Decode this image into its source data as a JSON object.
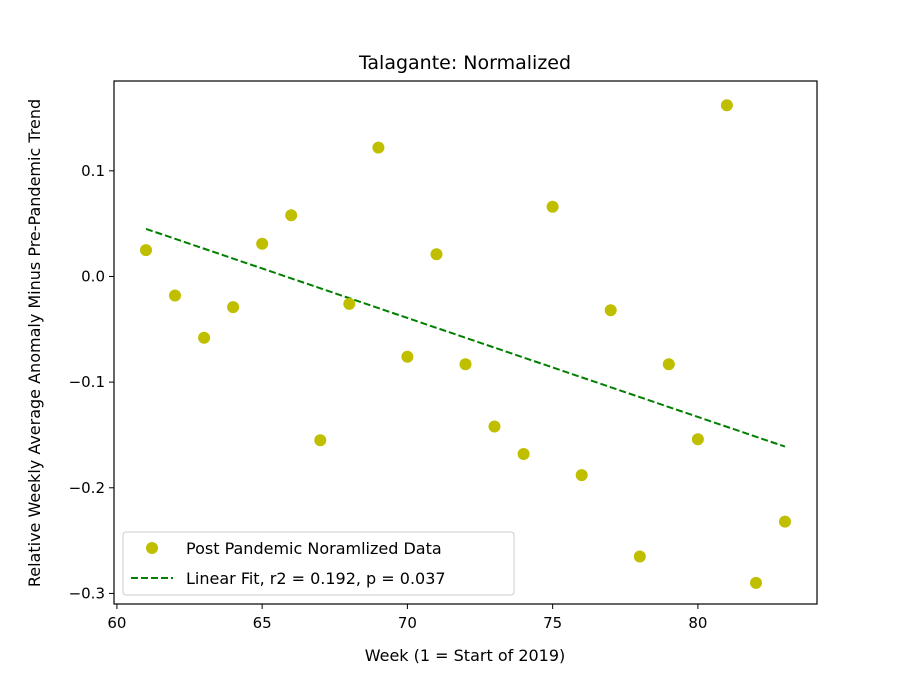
{
  "chart_data": {
    "type": "scatter",
    "title": "Talagante: Normalized",
    "xlabel": "Week (1 = Start of 2019)",
    "ylabel": "Relative Weekly Average Anomaly Minus Pre-Pandemic Trend",
    "xlim": [
      59.9,
      84.1
    ],
    "ylim": [
      -0.31,
      0.185
    ],
    "xticks": [
      60,
      65,
      70,
      75,
      80
    ],
    "xtick_labels": [
      "60",
      "65",
      "70",
      "75",
      "80"
    ],
    "yticks": [
      0.1,
      0.0,
      -0.1,
      -0.2,
      -0.3
    ],
    "ytick_labels": [
      "0.1",
      "0.0",
      "−0.1",
      "−0.2",
      "−0.3"
    ],
    "series": [
      {
        "name": "Post Pandemic Noramlized Data",
        "kind": "points",
        "color": "#bfbf00",
        "x": [
          61,
          62,
          63,
          64,
          65,
          66,
          67,
          68,
          69,
          70,
          71,
          72,
          73,
          74,
          75,
          76,
          77,
          78,
          79,
          80,
          81,
          82,
          83
        ],
        "y": [
          0.025,
          -0.018,
          -0.058,
          -0.029,
          0.031,
          0.058,
          -0.155,
          -0.026,
          0.122,
          -0.076,
          0.021,
          -0.083,
          -0.142,
          -0.168,
          0.066,
          -0.188,
          -0.032,
          -0.265,
          -0.083,
          -0.154,
          0.162,
          -0.29,
          -0.232
        ]
      },
      {
        "name": "Linear Fit, r2 = 0.192, p = 0.037",
        "kind": "dashed-line",
        "color": "#008000",
        "x": [
          61,
          83
        ],
        "y": [
          0.045,
          -0.161
        ]
      }
    ],
    "legend": {
      "placement": "lower-left",
      "entries": [
        "Post Pandemic Noramlized Data",
        "Linear Fit, r2 = 0.192, p = 0.037"
      ]
    }
  }
}
